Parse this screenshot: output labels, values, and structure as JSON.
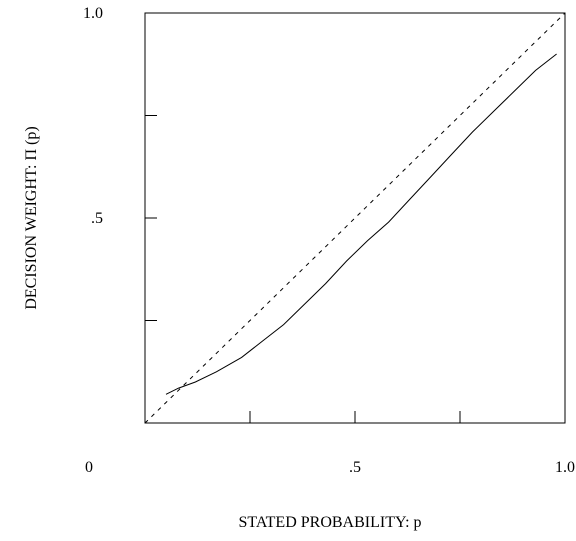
{
  "chart_data": {
    "type": "line",
    "title": "",
    "xlabel": "STATED PROBABILITY: p",
    "ylabel": "DECISION WEIGHT: Π (p)",
    "xlim": [
      0,
      1
    ],
    "ylim": [
      0,
      1
    ],
    "x_tick_labels": [
      {
        "value": 0,
        "label": "0"
      },
      {
        "value": 0.5,
        "label": ".5"
      },
      {
        "value": 1,
        "label": "1.0"
      }
    ],
    "y_tick_labels": [
      {
        "value": 0.5,
        "label": ".5"
      },
      {
        "value": 1,
        "label": "1.0"
      }
    ],
    "x_ticks": [
      0.25,
      0.5,
      0.75
    ],
    "y_ticks": [
      0.25,
      0.5,
      0.75
    ],
    "grid": false,
    "series": [
      {
        "style": "solid",
        "color": "#000000",
        "x": [
          0.05,
          0.08,
          0.12,
          0.17,
          0.23,
          0.28,
          0.33,
          0.38,
          0.43,
          0.48,
          0.53,
          0.58,
          0.63,
          0.68,
          0.73,
          0.78,
          0.83,
          0.88,
          0.93,
          0.98
        ],
        "y": [
          0.07,
          0.085,
          0.1,
          0.125,
          0.16,
          0.2,
          0.24,
          0.29,
          0.34,
          0.395,
          0.445,
          0.49,
          0.545,
          0.6,
          0.655,
          0.71,
          0.76,
          0.81,
          0.86,
          0.9
        ]
      },
      {
        "style": "dashed",
        "color": "#000000",
        "x": [
          0,
          1
        ],
        "y": [
          0,
          1
        ]
      }
    ]
  }
}
